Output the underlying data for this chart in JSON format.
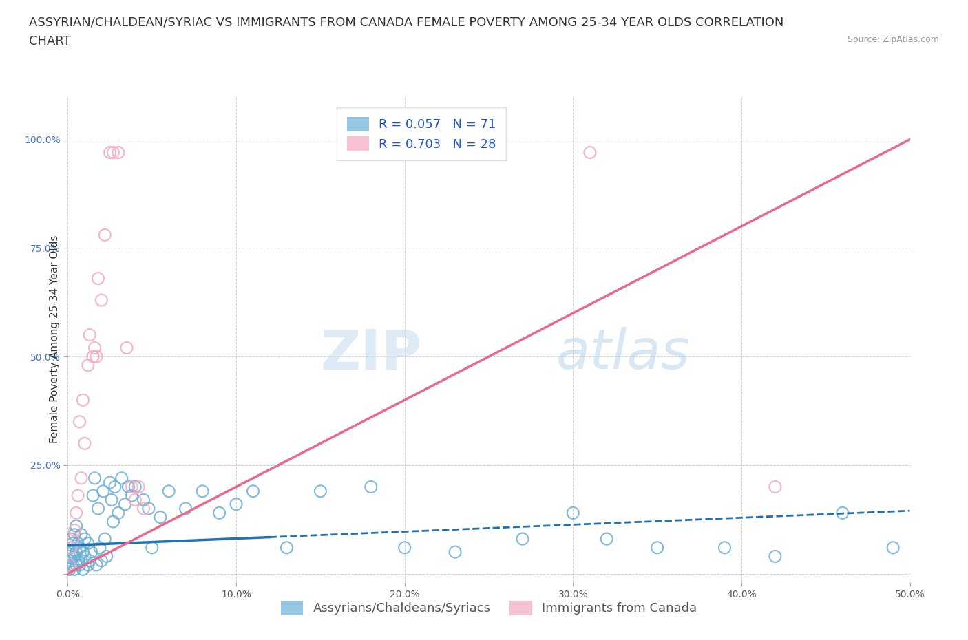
{
  "title_line1": "ASSYRIAN/CHALDEAN/SYRIAC VS IMMIGRANTS FROM CANADA FEMALE POVERTY AMONG 25-34 YEAR OLDS CORRELATION",
  "title_line2": "CHART",
  "source_text": "Source: ZipAtlas.com",
  "ylabel": "Female Poverty Among 25-34 Year Olds",
  "xlim": [
    0.0,
    0.5
  ],
  "ylim": [
    -0.02,
    1.1
  ],
  "xticks": [
    0.0,
    0.1,
    0.2,
    0.3,
    0.4,
    0.5
  ],
  "xticklabels": [
    "0.0%",
    "10.0%",
    "20.0%",
    "30.0%",
    "40.0%",
    "50.0%"
  ],
  "yticks": [
    0.0,
    0.25,
    0.5,
    0.75,
    1.0
  ],
  "yticklabels": [
    "",
    "25.0%",
    "50.0%",
    "75.0%",
    "100.0%"
  ],
  "r_blue": 0.057,
  "n_blue": 71,
  "r_pink": 0.703,
  "n_pink": 28,
  "legend_label_blue": "Assyrians/Chaldeans/Syriacs",
  "legend_label_pink": "Immigrants from Canada",
  "watermark_zip": "ZIP",
  "watermark_atlas": "atlas",
  "blue_color": "#6baed6",
  "pink_color": "#f4a8be",
  "blue_line_color": "#2171b5",
  "pink_line_color": "#e8698a",
  "blue_scatter": [
    [
      0.001,
      0.02
    ],
    [
      0.001,
      0.04
    ],
    [
      0.001,
      0.01
    ],
    [
      0.002,
      0.03
    ],
    [
      0.002,
      0.06
    ],
    [
      0.002,
      0.08
    ],
    [
      0.003,
      0.02
    ],
    [
      0.003,
      0.05
    ],
    [
      0.003,
      0.07
    ],
    [
      0.004,
      0.01
    ],
    [
      0.004,
      0.04
    ],
    [
      0.004,
      0.09
    ],
    [
      0.005,
      0.02
    ],
    [
      0.005,
      0.05
    ],
    [
      0.005,
      0.11
    ],
    [
      0.006,
      0.03
    ],
    [
      0.006,
      0.07
    ],
    [
      0.007,
      0.02
    ],
    [
      0.007,
      0.06
    ],
    [
      0.008,
      0.03
    ],
    [
      0.008,
      0.09
    ],
    [
      0.009,
      0.01
    ],
    [
      0.009,
      0.05
    ],
    [
      0.01,
      0.04
    ],
    [
      0.01,
      0.08
    ],
    [
      0.012,
      0.02
    ],
    [
      0.012,
      0.07
    ],
    [
      0.013,
      0.03
    ],
    [
      0.014,
      0.05
    ],
    [
      0.015,
      0.18
    ],
    [
      0.016,
      0.22
    ],
    [
      0.017,
      0.02
    ],
    [
      0.018,
      0.15
    ],
    [
      0.019,
      0.06
    ],
    [
      0.02,
      0.03
    ],
    [
      0.021,
      0.19
    ],
    [
      0.022,
      0.08
    ],
    [
      0.023,
      0.04
    ],
    [
      0.025,
      0.21
    ],
    [
      0.026,
      0.17
    ],
    [
      0.027,
      0.12
    ],
    [
      0.028,
      0.2
    ],
    [
      0.03,
      0.14
    ],
    [
      0.032,
      0.22
    ],
    [
      0.034,
      0.16
    ],
    [
      0.036,
      0.2
    ],
    [
      0.038,
      0.18
    ],
    [
      0.04,
      0.2
    ],
    [
      0.045,
      0.17
    ],
    [
      0.048,
      0.15
    ],
    [
      0.05,
      0.06
    ],
    [
      0.055,
      0.13
    ],
    [
      0.06,
      0.19
    ],
    [
      0.07,
      0.15
    ],
    [
      0.08,
      0.19
    ],
    [
      0.09,
      0.14
    ],
    [
      0.1,
      0.16
    ],
    [
      0.11,
      0.19
    ],
    [
      0.13,
      0.06
    ],
    [
      0.15,
      0.19
    ],
    [
      0.18,
      0.2
    ],
    [
      0.2,
      0.06
    ],
    [
      0.23,
      0.05
    ],
    [
      0.27,
      0.08
    ],
    [
      0.3,
      0.14
    ],
    [
      0.32,
      0.08
    ],
    [
      0.35,
      0.06
    ],
    [
      0.39,
      0.06
    ],
    [
      0.42,
      0.04
    ],
    [
      0.46,
      0.14
    ],
    [
      0.49,
      0.06
    ]
  ],
  "pink_scatter": [
    [
      0.001,
      0.02
    ],
    [
      0.002,
      0.06
    ],
    [
      0.003,
      0.08
    ],
    [
      0.004,
      0.1
    ],
    [
      0.005,
      0.14
    ],
    [
      0.006,
      0.18
    ],
    [
      0.007,
      0.35
    ],
    [
      0.008,
      0.22
    ],
    [
      0.009,
      0.4
    ],
    [
      0.01,
      0.3
    ],
    [
      0.012,
      0.48
    ],
    [
      0.013,
      0.55
    ],
    [
      0.015,
      0.5
    ],
    [
      0.016,
      0.52
    ],
    [
      0.017,
      0.5
    ],
    [
      0.018,
      0.68
    ],
    [
      0.02,
      0.63
    ],
    [
      0.022,
      0.78
    ],
    [
      0.025,
      0.97
    ],
    [
      0.027,
      0.97
    ],
    [
      0.03,
      0.97
    ],
    [
      0.035,
      0.52
    ],
    [
      0.038,
      0.2
    ],
    [
      0.04,
      0.17
    ],
    [
      0.042,
      0.2
    ],
    [
      0.045,
      0.15
    ],
    [
      0.31,
      0.97
    ],
    [
      0.42,
      0.2
    ]
  ],
  "pink_line_x": [
    0.0,
    0.5
  ],
  "pink_line_y": [
    0.0,
    1.0
  ],
  "blue_line_x": [
    0.0,
    0.5
  ],
  "blue_line_y": [
    0.065,
    0.145
  ],
  "title_fontsize": 13,
  "axis_label_fontsize": 11,
  "tick_fontsize": 10,
  "legend_fontsize": 13
}
